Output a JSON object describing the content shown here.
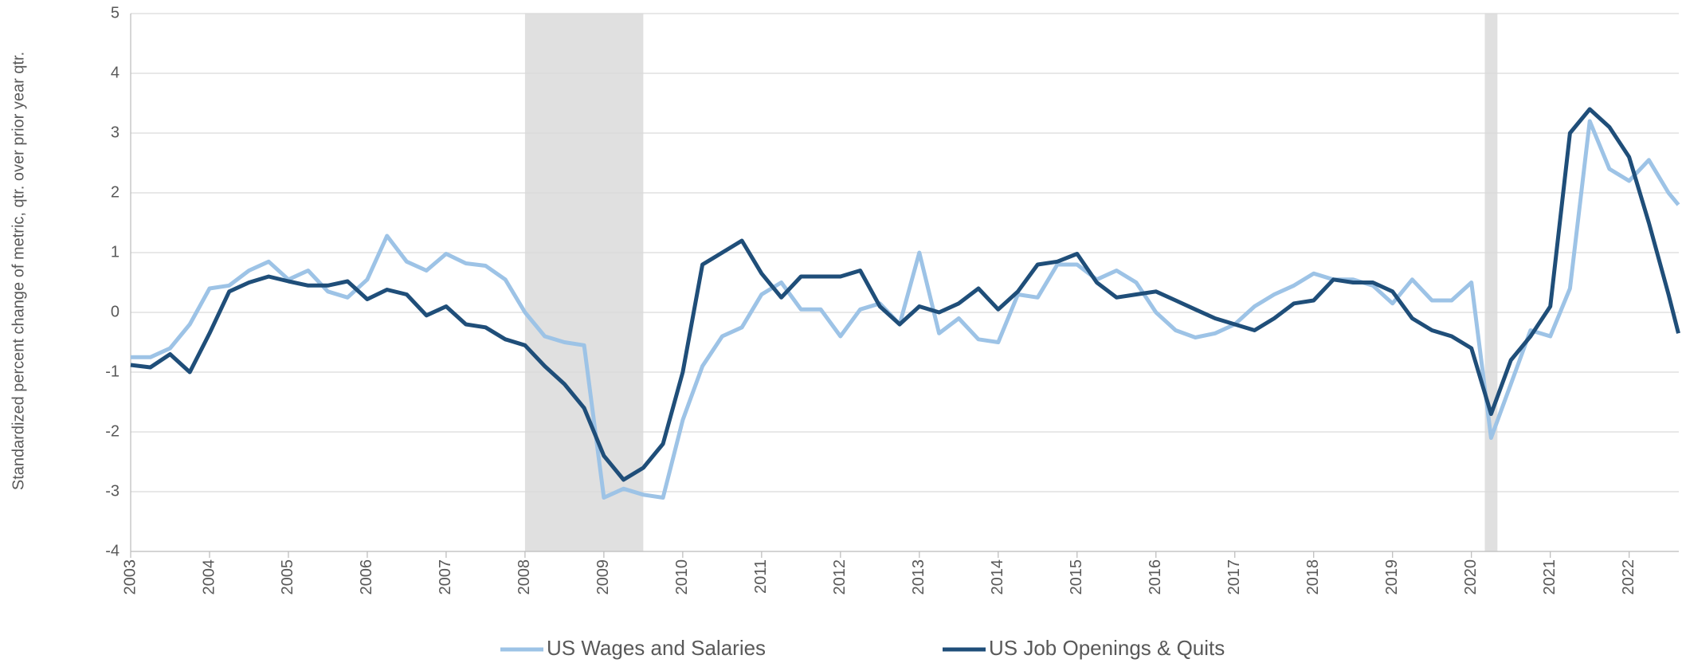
{
  "chart_data": {
    "type": "line",
    "y_label": "Standardized percent change of metric, qtr. over prior year qtr.",
    "x": [
      2003,
      2003.25,
      2003.5,
      2003.75,
      2004,
      2004.25,
      2004.5,
      2004.75,
      2005,
      2005.25,
      2005.5,
      2005.75,
      2006,
      2006.25,
      2006.5,
      2006.75,
      2007,
      2007.25,
      2007.5,
      2007.75,
      2008,
      2008.25,
      2008.5,
      2008.75,
      2009,
      2009.25,
      2009.5,
      2009.75,
      2010,
      2010.25,
      2010.5,
      2010.75,
      2011,
      2011.25,
      2011.5,
      2011.75,
      2012,
      2012.25,
      2012.5,
      2012.75,
      2013,
      2013.25,
      2013.5,
      2013.75,
      2014,
      2014.25,
      2014.5,
      2014.75,
      2015,
      2015.25,
      2015.5,
      2015.75,
      2016,
      2016.25,
      2016.5,
      2016.75,
      2017,
      2017.25,
      2017.5,
      2017.75,
      2018,
      2018.25,
      2018.5,
      2018.75,
      2019,
      2019.25,
      2019.5,
      2019.75,
      2020,
      2020.25,
      2020.5,
      2020.75,
      2021,
      2021.25,
      2021.5,
      2021.75,
      2022,
      2022.25,
      2022.5,
      2022.625
    ],
    "series": [
      {
        "name": "US Wages and Salaries",
        "color": "#9dc3e6",
        "values": [
          -0.75,
          -0.75,
          -0.6,
          -0.2,
          0.4,
          0.45,
          0.7,
          0.85,
          0.55,
          0.7,
          0.35,
          0.25,
          0.55,
          1.28,
          0.85,
          0.7,
          0.98,
          0.82,
          0.78,
          0.55,
          0.0,
          -0.4,
          -0.5,
          -0.55,
          -3.1,
          -2.95,
          -3.05,
          -3.1,
          -1.8,
          -0.9,
          -0.4,
          -0.25,
          0.3,
          0.5,
          0.05,
          0.05,
          -0.4,
          0.05,
          0.15,
          -0.2,
          1.0,
          -0.35,
          -0.1,
          -0.45,
          -0.5,
          0.3,
          0.25,
          0.8,
          0.8,
          0.55,
          0.7,
          0.5,
          0.0,
          -0.3,
          -0.42,
          -0.35,
          -0.2,
          0.1,
          0.3,
          0.45,
          0.65,
          0.55,
          0.55,
          0.45,
          0.15,
          0.55,
          0.2,
          0.2,
          0.5,
          -2.1,
          -1.2,
          -0.3,
          -0.4,
          0.4,
          3.2,
          2.4,
          2.2,
          2.55,
          2.0,
          1.8
        ]
      },
      {
        "name": "US Job Openings & Quits",
        "color": "#1f4e79",
        "values": [
          -0.88,
          -0.92,
          -0.7,
          -1.0,
          -0.35,
          0.35,
          0.5,
          0.6,
          0.52,
          0.45,
          0.45,
          0.52,
          0.22,
          0.38,
          0.3,
          -0.05,
          0.1,
          -0.2,
          -0.25,
          -0.45,
          -0.55,
          -0.9,
          -1.2,
          -1.6,
          -2.4,
          -2.8,
          -2.6,
          -2.2,
          -1.0,
          0.8,
          1.0,
          1.2,
          0.65,
          0.25,
          0.6,
          0.6,
          0.6,
          0.7,
          0.1,
          -0.2,
          0.1,
          0.0,
          0.15,
          0.4,
          0.05,
          0.35,
          0.8,
          0.85,
          0.98,
          0.5,
          0.25,
          0.3,
          0.35,
          0.2,
          0.05,
          -0.1,
          -0.2,
          -0.3,
          -0.1,
          0.15,
          0.2,
          0.55,
          0.5,
          0.5,
          0.35,
          -0.1,
          -0.3,
          -0.4,
          -0.6,
          -1.7,
          -0.8,
          -0.4,
          0.1,
          3.0,
          3.4,
          3.1,
          2.6,
          1.5,
          0.3,
          -0.35
        ]
      }
    ],
    "shaded_ranges": [
      [
        2008.0,
        2009.5
      ],
      [
        2020.17,
        2020.33
      ]
    ],
    "xlim": [
      2003,
      2022.63
    ],
    "xticks": [
      2003,
      2004,
      2005,
      2006,
      2007,
      2008,
      2009,
      2010,
      2011,
      2012,
      2013,
      2014,
      2015,
      2016,
      2017,
      2018,
      2019,
      2020,
      2021,
      2022
    ],
    "ylim": [
      -4,
      5
    ],
    "yticks": [
      -4,
      -3,
      -2,
      -1,
      0,
      1,
      2,
      3,
      4,
      5
    ],
    "grid": true,
    "legend": "bottom"
  }
}
